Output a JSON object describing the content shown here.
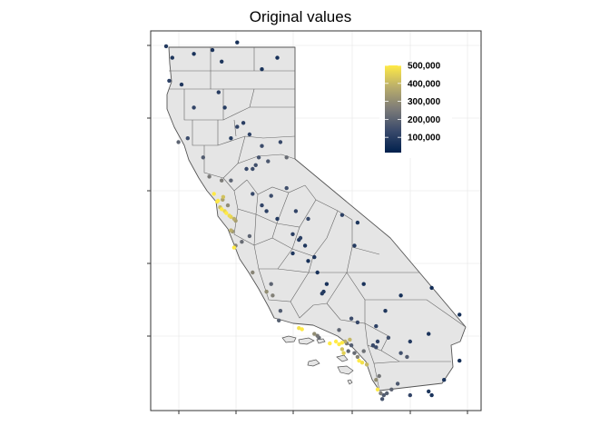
{
  "title": "Original values",
  "legend": {
    "ticks": [
      {
        "value": 500000,
        "label": "500,000"
      },
      {
        "value": 400000,
        "label": "400,000"
      },
      {
        "value": 300000,
        "label": "300,000"
      },
      {
        "value": 200000,
        "label": "200,000"
      },
      {
        "value": 100000,
        "label": "100,000"
      }
    ],
    "range": [
      15000,
      500001
    ],
    "colors": {
      "low": "#00204d",
      "mid": "#7c7b78",
      "high": "#ffea46"
    }
  },
  "map": {
    "region": "California",
    "land_fill": "#e5e5e5",
    "border_color": "#555555",
    "panel_border": "#333333",
    "grid_color": "#ebebeb"
  },
  "chart_data": {
    "type": "scatter",
    "title": "Original values",
    "xlabel": "",
    "ylabel": "",
    "xlim": [
      -124.6,
      -113.9
    ],
    "ylim": [
      32.3,
      42.2
    ],
    "grid": true,
    "legend_position": "top-right",
    "color_scale": "cividis",
    "series": [
      {
        "points": [
          [
            -124.1,
            41.8,
            90000
          ],
          [
            -123.9,
            41.5,
            80000
          ],
          [
            -124.0,
            40.9,
            110000
          ],
          [
            -123.6,
            40.8,
            85000
          ],
          [
            -123.2,
            41.6,
            70000
          ],
          [
            -122.6,
            41.7,
            75000
          ],
          [
            -122.3,
            41.4,
            80000
          ],
          [
            -121.8,
            41.9,
            65000
          ],
          [
            -120.5,
            41.5,
            60000
          ],
          [
            -121.0,
            41.2,
            70000
          ],
          [
            -122.4,
            40.6,
            100000
          ],
          [
            -122.2,
            40.2,
            95000
          ],
          [
            -121.6,
            39.8,
            100000
          ],
          [
            -121.4,
            39.5,
            110000
          ],
          [
            -121.8,
            39.7,
            120000
          ],
          [
            -122.0,
            39.4,
            95000
          ],
          [
            -121.3,
            38.6,
            140000
          ],
          [
            -121.5,
            38.6,
            130000
          ],
          [
            -121.2,
            38.7,
            150000
          ],
          [
            -121.1,
            38.9,
            160000
          ],
          [
            -120.8,
            38.8,
            170000
          ],
          [
            -121.0,
            39.2,
            140000
          ],
          [
            -120.4,
            39.3,
            130000
          ],
          [
            -120.2,
            38.9,
            220000
          ],
          [
            -122.0,
            38.3,
            200000
          ],
          [
            -122.3,
            38.3,
            260000
          ],
          [
            -122.7,
            38.4,
            250000
          ],
          [
            -122.9,
            38.9,
            180000
          ],
          [
            -123.4,
            39.4,
            140000
          ],
          [
            -123.7,
            39.3,
            200000
          ],
          [
            -123.2,
            40.2,
            120000
          ],
          [
            -122.42,
            37.77,
            500001
          ],
          [
            -122.45,
            37.75,
            480000
          ],
          [
            -122.27,
            37.8,
            350000
          ],
          [
            -122.1,
            37.65,
            300000
          ],
          [
            -122.25,
            37.87,
            420000
          ],
          [
            -122.55,
            37.95,
            500001
          ],
          [
            -122.15,
            37.45,
            500001
          ],
          [
            -122.2,
            37.5,
            460000
          ],
          [
            -122.0,
            37.35,
            450000
          ],
          [
            -121.9,
            37.3,
            380000
          ],
          [
            -122.05,
            37.38,
            470000
          ],
          [
            -121.85,
            37.25,
            340000
          ],
          [
            -122.0,
            37.0,
            380000
          ],
          [
            -121.95,
            36.97,
            320000
          ],
          [
            -121.85,
            36.6,
            280000
          ],
          [
            -121.9,
            36.55,
            500001
          ],
          [
            -121.65,
            36.7,
            220000
          ],
          [
            -121.4,
            36.85,
            200000
          ],
          [
            -122.3,
            37.55,
            500001
          ],
          [
            -122.35,
            37.6,
            410000
          ],
          [
            -121.3,
            37.95,
            130000
          ],
          [
            -121.0,
            37.65,
            120000
          ],
          [
            -120.85,
            37.5,
            110000
          ],
          [
            -120.5,
            37.3,
            90000
          ],
          [
            -120.0,
            36.9,
            100000
          ],
          [
            -119.8,
            36.75,
            95000
          ],
          [
            -119.75,
            36.8,
            110000
          ],
          [
            -119.6,
            36.6,
            80000
          ],
          [
            -119.3,
            36.3,
            75000
          ],
          [
            -119.2,
            35.9,
            70000
          ],
          [
            -119.0,
            35.4,
            85000
          ],
          [
            -119.05,
            35.35,
            95000
          ],
          [
            -118.9,
            35.6,
            70000
          ],
          [
            -119.5,
            36.2,
            65000
          ],
          [
            -120.0,
            36.4,
            80000
          ],
          [
            -120.7,
            37.9,
            140000
          ],
          [
            -120.2,
            38.1,
            150000
          ],
          [
            -119.9,
            37.5,
            120000
          ],
          [
            -119.5,
            37.3,
            130000
          ],
          [
            -118.4,
            37.4,
            110000
          ],
          [
            -117.9,
            37.2,
            80000
          ],
          [
            -118.0,
            36.6,
            90000
          ],
          [
            -117.7,
            35.6,
            70000
          ],
          [
            -117.0,
            34.9,
            80000
          ],
          [
            -116.5,
            35.3,
            60000
          ],
          [
            -115.5,
            35.5,
            50000
          ],
          [
            -114.6,
            34.8,
            60000
          ],
          [
            -115.6,
            34.3,
            70000
          ],
          [
            -116.2,
            34.1,
            90000
          ],
          [
            -116.9,
            34.2,
            150000
          ],
          [
            -117.3,
            34.5,
            110000
          ],
          [
            -117.9,
            34.6,
            130000
          ],
          [
            -118.1,
            34.7,
            140000
          ],
          [
            -118.5,
            34.4,
            200000
          ],
          [
            -118.25,
            34.05,
            250000
          ],
          [
            -118.4,
            34.07,
            500001
          ],
          [
            -118.5,
            34.03,
            500001
          ],
          [
            -118.6,
            34.1,
            500001
          ],
          [
            -118.8,
            34.05,
            500001
          ],
          [
            -118.3,
            34.1,
            380000
          ],
          [
            -118.15,
            34.15,
            400000
          ],
          [
            -118.1,
            34.0,
            180000
          ],
          [
            -118.2,
            33.85,
            200000
          ],
          [
            -118.35,
            33.8,
            450000
          ],
          [
            -118.4,
            33.9,
            420000
          ],
          [
            -118.0,
            33.8,
            220000
          ],
          [
            -117.9,
            33.7,
            280000
          ],
          [
            -117.85,
            33.6,
            500001
          ],
          [
            -117.75,
            33.55,
            480000
          ],
          [
            -117.6,
            33.5,
            400000
          ],
          [
            -117.7,
            33.85,
            230000
          ],
          [
            -117.4,
            34.0,
            130000
          ],
          [
            -117.25,
            34.1,
            120000
          ],
          [
            -117.3,
            33.95,
            140000
          ],
          [
            -116.5,
            33.8,
            150000
          ],
          [
            -116.3,
            33.7,
            180000
          ],
          [
            -117.2,
            33.2,
            240000
          ],
          [
            -117.3,
            33.1,
            300000
          ],
          [
            -117.25,
            32.85,
            500001
          ],
          [
            -117.15,
            32.75,
            260000
          ],
          [
            -117.05,
            32.7,
            180000
          ],
          [
            -116.95,
            32.75,
            190000
          ],
          [
            -117.1,
            32.6,
            160000
          ],
          [
            -116.8,
            32.85,
            200000
          ],
          [
            -116.6,
            33.0,
            170000
          ],
          [
            -116.2,
            32.7,
            120000
          ],
          [
            -115.6,
            32.8,
            80000
          ],
          [
            -115.5,
            32.7,
            70000
          ],
          [
            -114.6,
            33.6,
            60000
          ],
          [
            -115.1,
            33.1,
            70000
          ],
          [
            -119.2,
            34.25,
            250000
          ],
          [
            -119.15,
            34.2,
            220000
          ],
          [
            -119.3,
            34.3,
            300000
          ],
          [
            -119.7,
            34.42,
            500001
          ],
          [
            -119.8,
            34.45,
            480000
          ],
          [
            -120.45,
            34.65,
            190000
          ],
          [
            -120.4,
            34.9,
            180000
          ],
          [
            -120.65,
            35.3,
            270000
          ],
          [
            -120.7,
            35.6,
            200000
          ],
          [
            -120.85,
            35.4,
            300000
          ],
          [
            -121.3,
            35.9,
            280000
          ]
        ]
      }
    ]
  }
}
